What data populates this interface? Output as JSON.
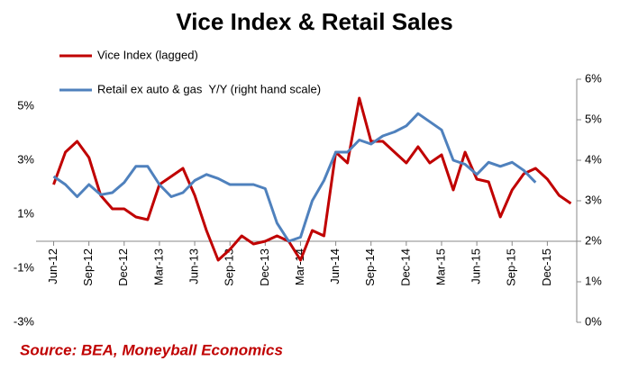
{
  "chart_data": {
    "type": "line",
    "title": "Vice Index & Retail Sales",
    "source": "Source: BEA, Moneyball Economics",
    "legend": "top-left",
    "categories": [
      "Jun-12",
      null,
      null,
      "Sep-12",
      null,
      null,
      "Dec-12",
      null,
      null,
      "Mar-13",
      null,
      null,
      "Jun-13",
      null,
      null,
      "Sep-13",
      null,
      null,
      "Dec-13",
      null,
      null,
      "Mar-14",
      null,
      null,
      "Jun-14",
      null,
      null,
      "Sep-14",
      null,
      null,
      "Dec-14",
      null,
      null,
      "Mar-15",
      null,
      null,
      "Jun-15",
      null,
      null,
      "Sep-15",
      null,
      null,
      "Dec-15",
      null,
      null
    ],
    "series": [
      {
        "name": "Vice Index (lagged)",
        "color": "#c00000",
        "axis": "y",
        "values": [
          2.1,
          3.3,
          3.7,
          3.1,
          1.7,
          1.2,
          1.2,
          0.9,
          0.8,
          2.1,
          2.4,
          2.7,
          1.7,
          0.4,
          -0.7,
          -0.3,
          0.2,
          -0.1,
          0,
          0.2,
          0,
          -0.7,
          0.4,
          0.2,
          3.3,
          2.9,
          5.3,
          3.7,
          3.7,
          3.3,
          2.9,
          3.5,
          2.9,
          3.2,
          1.9,
          3.3,
          2.3,
          2.2,
          0.9,
          1.9,
          2.5,
          2.7,
          2.3,
          1.7,
          1.4
        ]
      },
      {
        "name": "Retail ex auto & gas  Y/Y (right hand scale)",
        "color": "#4f81bd",
        "axis": "y2",
        "values": [
          3.6,
          3.4,
          3.1,
          3.4,
          3.15,
          3.2,
          3.45,
          3.85,
          3.85,
          3.4,
          3.1,
          3.2,
          3.5,
          3.65,
          3.55,
          3.4,
          3.4,
          3.4,
          3.3,
          2.45,
          2.0,
          2.1,
          3.0,
          3.5,
          4.2,
          4.2,
          4.5,
          4.4,
          4.6,
          4.7,
          4.85,
          5.15,
          4.95,
          4.75,
          4.0,
          3.9,
          3.65,
          3.95,
          3.85,
          3.95,
          3.75,
          3.45,
          null,
          null,
          null
        ]
      }
    ],
    "ylim": [
      -3,
      6
    ],
    "yticks": [
      {
        "value": -3,
        "label": "-3%"
      },
      {
        "value": -1,
        "label": "-1%"
      },
      {
        "value": 1,
        "label": "1%"
      },
      {
        "value": 3,
        "label": "3%"
      },
      {
        "value": 5,
        "label": "5%"
      }
    ],
    "y2lim": [
      0,
      6
    ],
    "y2ticks": [
      {
        "value": 0,
        "label": "0%"
      },
      {
        "value": 1,
        "label": "1%"
      },
      {
        "value": 2,
        "label": "2%"
      },
      {
        "value": 3,
        "label": "3%"
      },
      {
        "value": 4,
        "label": "4%"
      },
      {
        "value": 5,
        "label": "5%"
      },
      {
        "value": 6,
        "label": "6%"
      }
    ]
  }
}
